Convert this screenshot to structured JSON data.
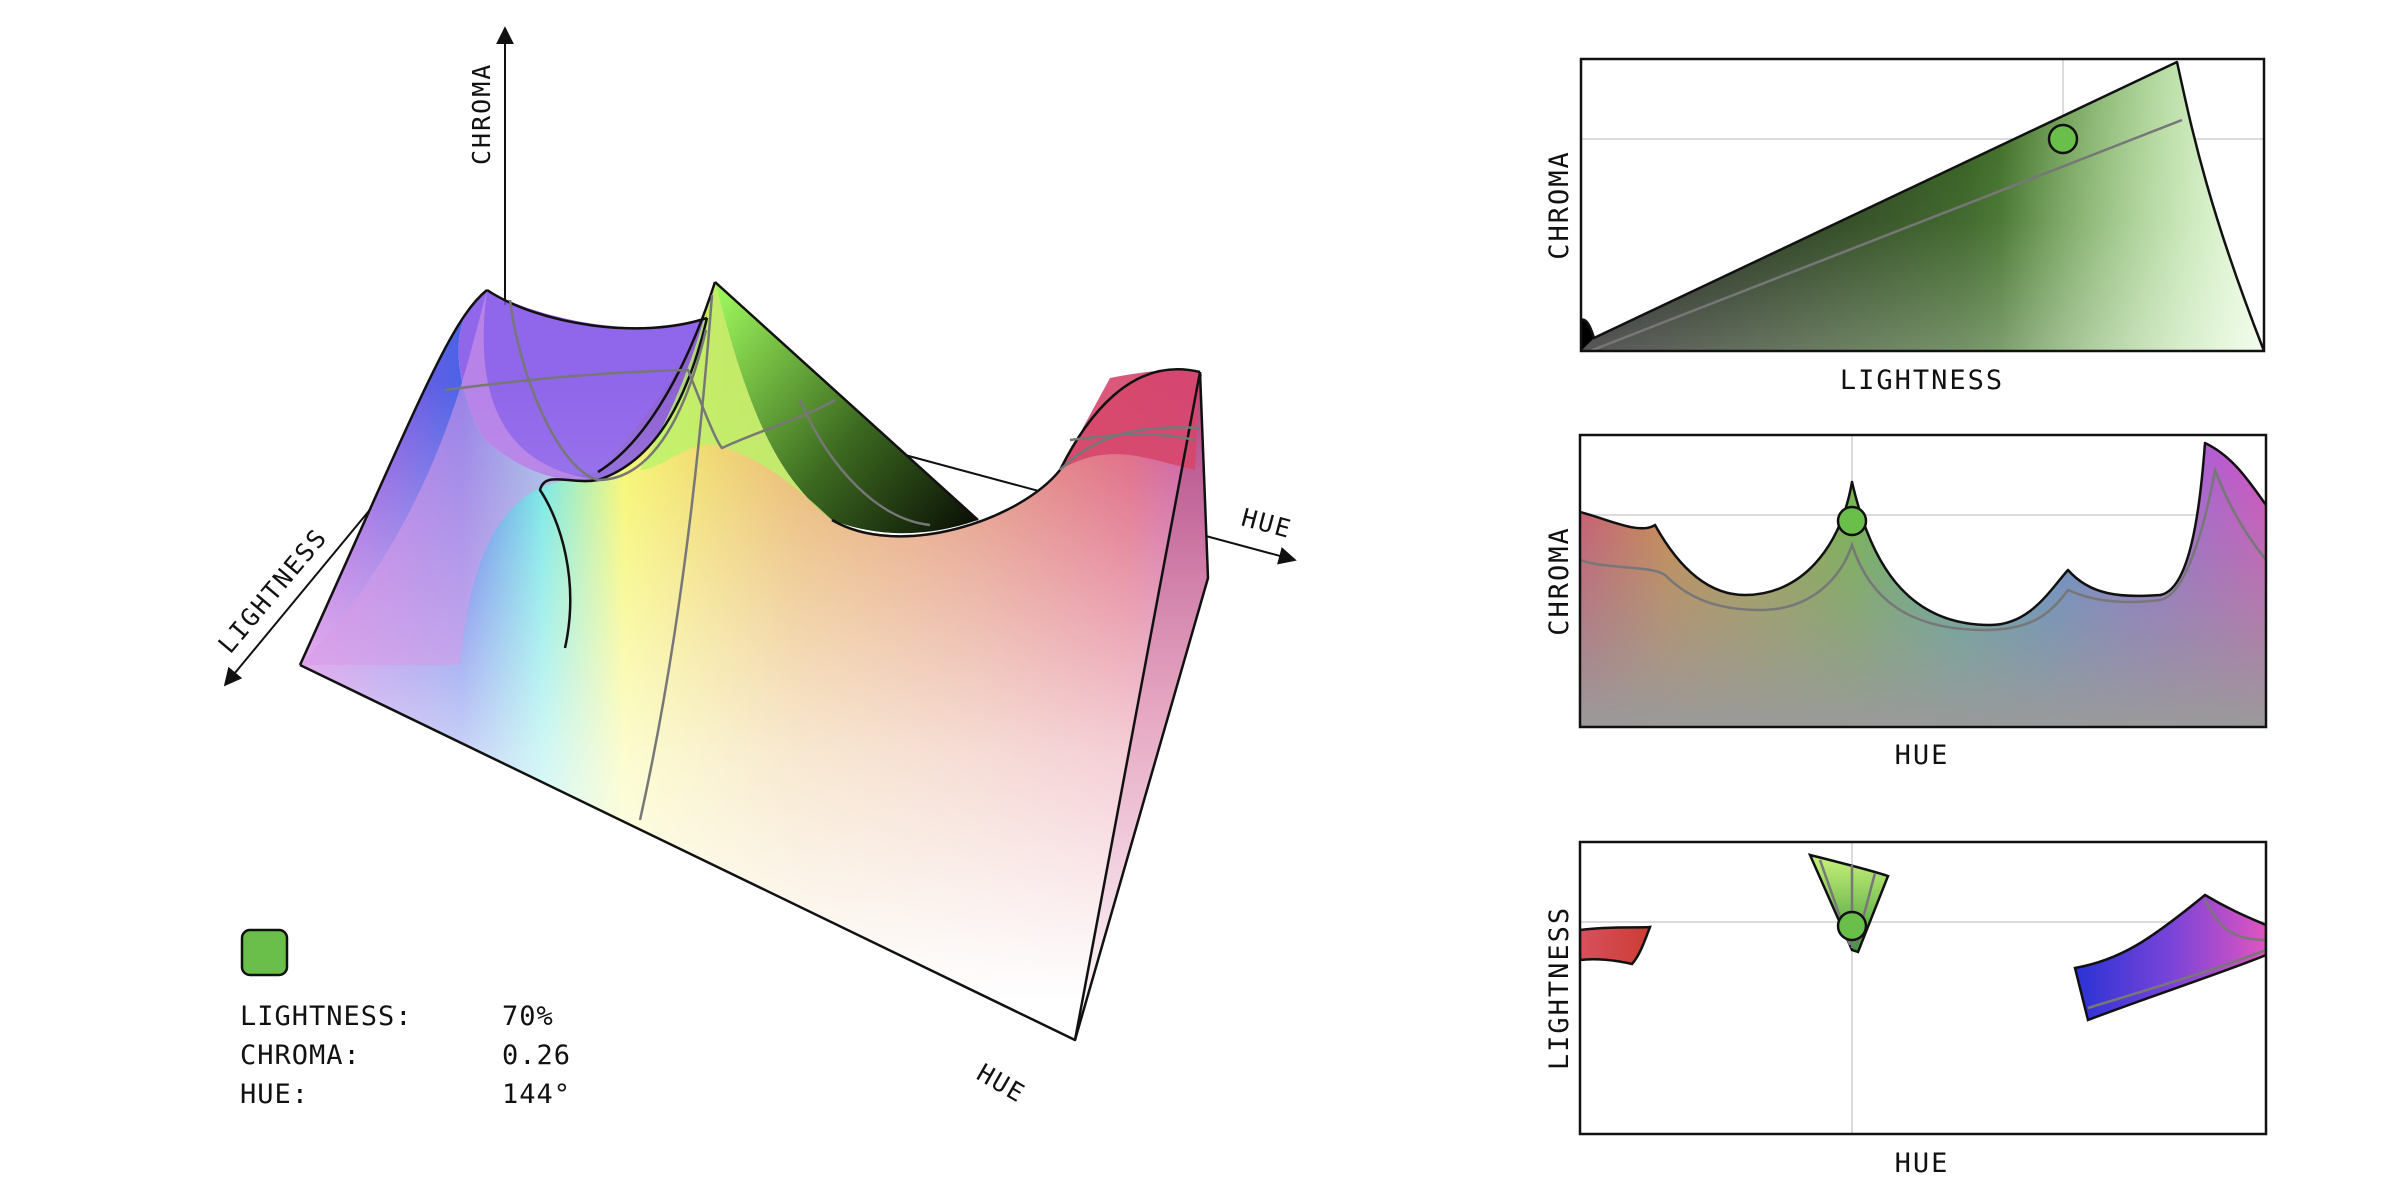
{
  "axes3d": {
    "chroma_label": "CHROMA",
    "lightness_label": "LIGHTNESS",
    "hue_label_back": "HUE",
    "hue_label_front": "HUE"
  },
  "panels": [
    {
      "id": "lightness-chroma",
      "x_label": "LIGHTNESS",
      "y_label": "CHROMA"
    },
    {
      "id": "hue-chroma",
      "x_label": "HUE",
      "y_label": "CHROMA"
    },
    {
      "id": "hue-lightness",
      "x_label": "HUE",
      "y_label": "LIGHTNESS"
    }
  ],
  "selected": {
    "swatch_color": "#6abf4b",
    "lightness_label": "LIGHTNESS:",
    "lightness_value": "70%",
    "chroma_label": "CHROMA:",
    "chroma_value": "0.26",
    "hue_label": "HUE:",
    "hue_value": "144°"
  },
  "colors": {
    "marker_fill": "#6abf4b",
    "ink": "#111111",
    "guide": "#cfcfcf"
  }
}
